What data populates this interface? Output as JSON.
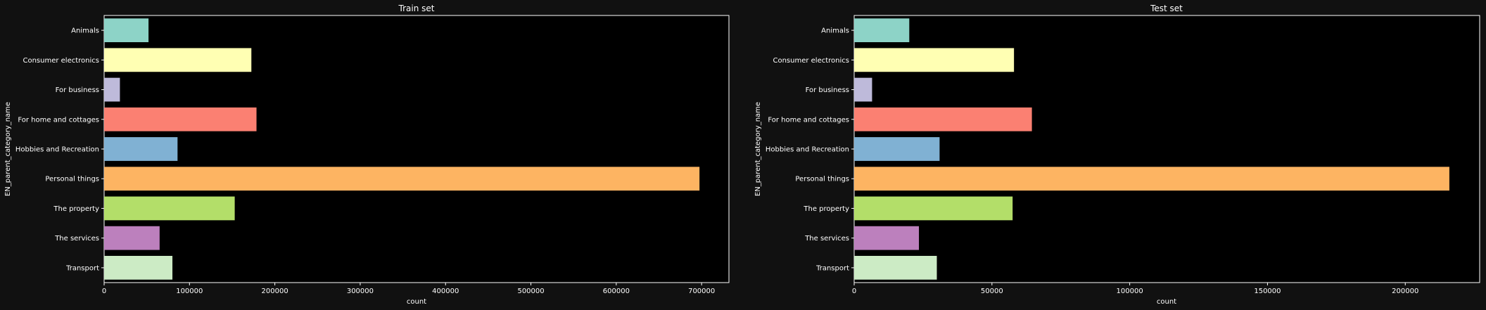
{
  "chart_data": [
    {
      "type": "bar",
      "orientation": "horizontal",
      "title": "Train set",
      "xlabel": "count",
      "ylabel": "EN_parent_category_name",
      "categories": [
        "Animals",
        "Consumer electronics",
        "For business",
        "For home and cottages",
        "Hobbies and Recreation",
        "Personal things",
        "The property",
        "The services",
        "Transport"
      ],
      "values": [
        52000,
        172500,
        18500,
        178500,
        86000,
        697500,
        153000,
        65000,
        80000
      ],
      "xlim": [
        0,
        732000
      ],
      "xticks": [
        0,
        100000,
        200000,
        300000,
        400000,
        500000,
        600000,
        700000
      ],
      "xtick_labels": [
        "0",
        "100000",
        "200000",
        "300000",
        "400000",
        "500000",
        "600000",
        "700000"
      ],
      "grid": false,
      "colors": [
        "#8dd3c7",
        "#ffffb3",
        "#bebada",
        "#fb8072",
        "#80b1d3",
        "#fdb462",
        "#b3de69",
        "#bc80bd",
        "#ccebc5"
      ]
    },
    {
      "type": "bar",
      "orientation": "horizontal",
      "title": "Test set",
      "xlabel": "count",
      "ylabel": "EN_parent_category_name",
      "categories": [
        "Animals",
        "Consumer electronics",
        "For business",
        "For home and cottages",
        "Hobbies and Recreation",
        "Personal things",
        "The property",
        "The services",
        "Transport"
      ],
      "values": [
        20000,
        58000,
        6500,
        64500,
        31000,
        216000,
        57500,
        23500,
        30000
      ],
      "xlim": [
        0,
        227000
      ],
      "xticks": [
        0,
        50000,
        100000,
        150000,
        200000
      ],
      "xtick_labels": [
        "0",
        "50000",
        "100000",
        "150000",
        "200000"
      ],
      "grid": false,
      "colors": [
        "#8dd3c7",
        "#ffffb3",
        "#bebada",
        "#fb8072",
        "#80b1d3",
        "#fdb462",
        "#b3de69",
        "#bc80bd",
        "#ccebc5"
      ]
    }
  ],
  "theme": {
    "figure_background": "#111111",
    "axes_background": "#000000",
    "axes_edge": "#ffffff",
    "text_color": "#ffffff"
  }
}
